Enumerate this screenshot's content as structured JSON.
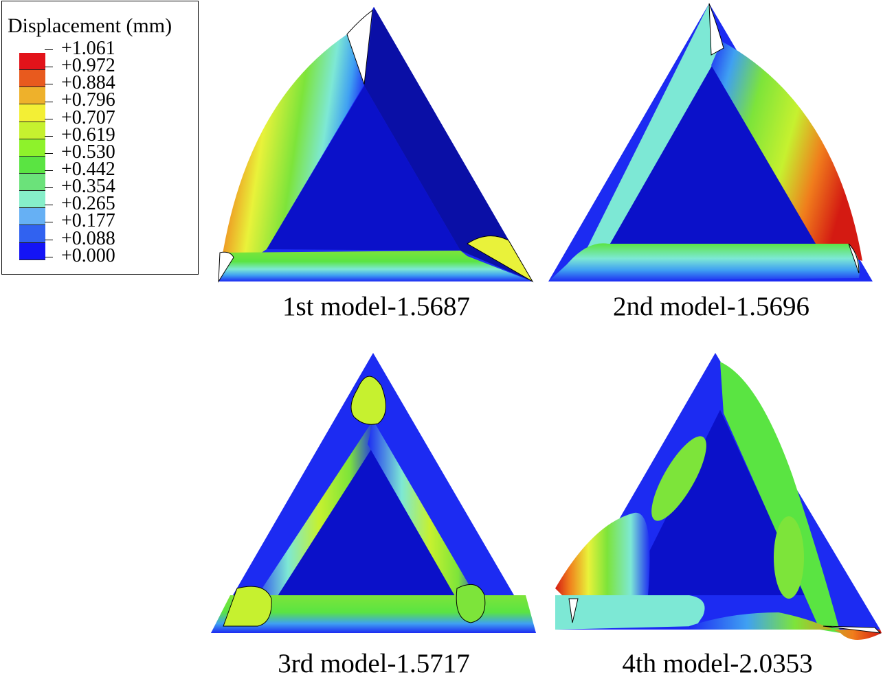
{
  "legend": {
    "title": "Displacement (mm)",
    "levels": [
      "+1.061",
      "+0.972",
      "+0.884",
      "+0.796",
      "+0.707",
      "+0.619",
      "+0.530",
      "+0.442",
      "+0.354",
      "+0.265",
      "+0.177",
      "+0.088",
      "+0.000"
    ],
    "colors": [
      "#e2131a",
      "#e85a1e",
      "#eeb12b",
      "#f3ef35",
      "#c6f12f",
      "#8ef22b",
      "#5ae442",
      "#6be27a",
      "#86eec9",
      "#66b0f4",
      "#3162f0",
      "#1414f6"
    ]
  },
  "models": [
    {
      "id": "m1",
      "caption": "1st model-1.5687"
    },
    {
      "id": "m2",
      "caption": "2nd model-1.5696"
    },
    {
      "id": "m3",
      "caption": "3rd model-1.5717"
    },
    {
      "id": "m4",
      "caption": "4th model-2.0353"
    }
  ],
  "colors": {
    "plate_blue": "#0b11c9",
    "edge_blue": "#1c2bf2",
    "dark_blue": "#0a0fa6",
    "red": "#d41a12",
    "orange": "#f07d1c",
    "yellow": "#e9f23a",
    "green": "#7de43a",
    "cyan": "#7de8d5",
    "light_blue": "#3fa0f2"
  }
}
